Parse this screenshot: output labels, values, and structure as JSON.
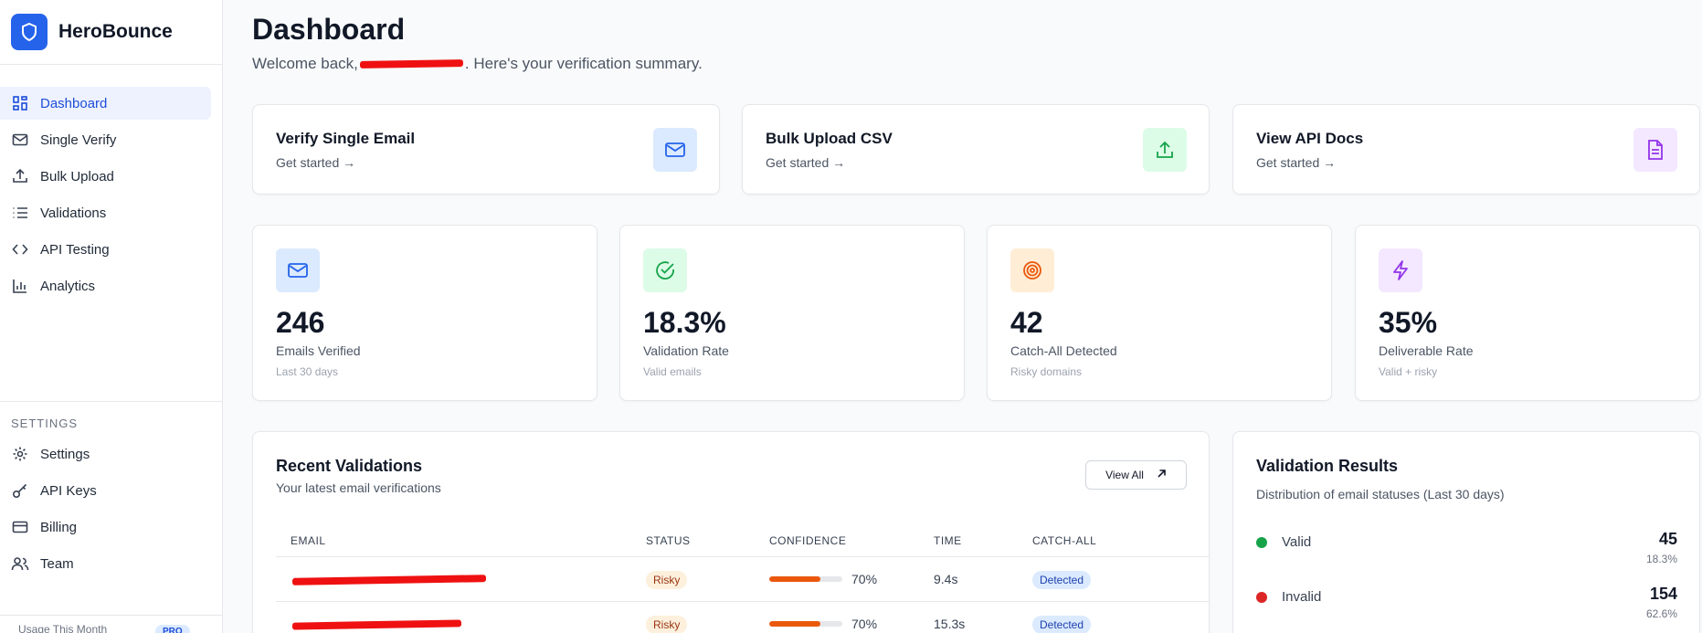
{
  "brand": {
    "name": "HeroBounce"
  },
  "nav": [
    {
      "label": "Dashboard",
      "icon": "dashboard-icon",
      "active": true
    },
    {
      "label": "Single Verify",
      "icon": "mail-icon"
    },
    {
      "label": "Bulk Upload",
      "icon": "upload-icon"
    },
    {
      "label": "Validations",
      "icon": "list-icon"
    },
    {
      "label": "API Testing",
      "icon": "code-icon"
    },
    {
      "label": "Analytics",
      "icon": "bar-chart-icon"
    }
  ],
  "settings_section": {
    "label": "SETTINGS",
    "items": [
      {
        "label": "Settings",
        "icon": "gear-icon"
      },
      {
        "label": "API Keys",
        "icon": "key-icon"
      },
      {
        "label": "Billing",
        "icon": "credit-card-icon"
      },
      {
        "label": "Team",
        "icon": "users-icon"
      }
    ]
  },
  "usage": {
    "label": "Usage This Month",
    "badge": "PRO"
  },
  "header": {
    "title": "Dashboard",
    "welcome_prefix": "Welcome back,",
    "welcome_suffix": ". Here's your verification summary."
  },
  "quick_actions": [
    {
      "title": "Verify Single Email",
      "sub": "Get started →",
      "icon": "mail-icon",
      "color": "#dbeafe"
    },
    {
      "title": "Bulk Upload CSV",
      "sub": "Get started →",
      "icon": "upload-icon",
      "color": "#dcfce7"
    },
    {
      "title": "View API Docs",
      "sub": "Get started →",
      "icon": "document-icon",
      "color": "#f3e8ff"
    }
  ],
  "stats": [
    {
      "value": "246",
      "label": "Emails Verified",
      "sub": "Last 30 days",
      "icon": "mail-icon",
      "color": "#dbeafe"
    },
    {
      "value": "18.3%",
      "label": "Validation Rate",
      "sub": "Valid emails",
      "icon": "check-circle-icon",
      "color": "#dcfce7"
    },
    {
      "value": "42",
      "label": "Catch-All Detected",
      "sub": "Risky domains",
      "icon": "target-icon",
      "color": "#ffedd5"
    },
    {
      "value": "35%",
      "label": "Deliverable Rate",
      "sub": "Valid + risky",
      "icon": "lightning-icon",
      "color": "#f3e8ff"
    }
  ],
  "recent": {
    "title": "Recent Validations",
    "sub": "Your latest email verifications",
    "view_all": "View All",
    "columns": [
      "EMAIL",
      "STATUS",
      "CONFIDENCE",
      "TIME",
      "CATCH-ALL"
    ],
    "rows": [
      {
        "status": "Risky",
        "confidence": 0.7,
        "confidence_label": "70%",
        "time": "9.4s",
        "catch_all": "Detected"
      },
      {
        "status": "Risky",
        "confidence": 0.7,
        "confidence_label": "70%",
        "time": "15.3s",
        "catch_all": "Detected"
      }
    ]
  },
  "results": {
    "title": "Validation Results",
    "sub": "Distribution of email statuses (Last 30 days)",
    "items": [
      {
        "name": "Valid",
        "count": "45",
        "pct": "18.3%",
        "color": "#16a34a"
      },
      {
        "name": "Invalid",
        "count": "154",
        "pct": "62.6%",
        "color": "#dc2626"
      }
    ]
  }
}
